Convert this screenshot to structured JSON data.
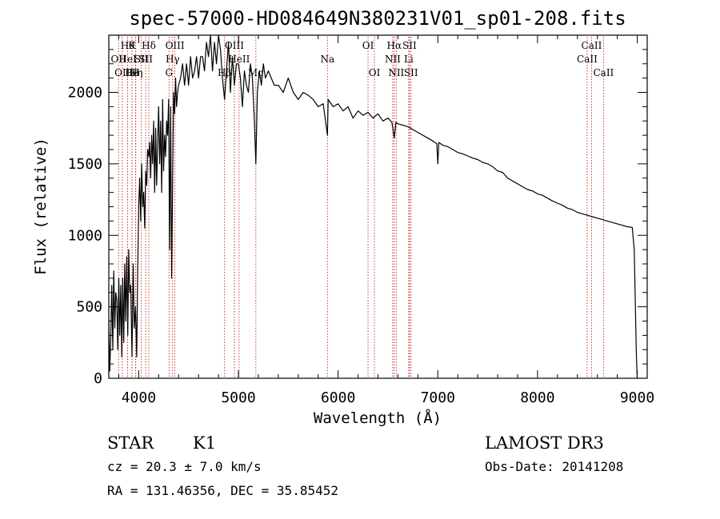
{
  "chart_data": {
    "type": "line",
    "title": "spec-57000-HD084649N380231V01_sp01-208.fits",
    "xlabel": "Wavelength (Å)",
    "ylabel": "Flux (relative)",
    "xlim": [
      3700,
      9100
    ],
    "ylim": [
      0,
      2400
    ],
    "xticks": [
      4000,
      5000,
      6000,
      7000,
      8000,
      9000
    ],
    "yticks": [
      0,
      500,
      1000,
      1500,
      2000
    ],
    "grid": false,
    "series": [
      {
        "name": "flux",
        "x": [
          3700,
          3710,
          3720,
          3730,
          3740,
          3750,
          3760,
          3770,
          3780,
          3790,
          3800,
          3810,
          3820,
          3830,
          3840,
          3850,
          3860,
          3870,
          3880,
          3890,
          3900,
          3910,
          3920,
          3933,
          3945,
          3955,
          3968,
          3980,
          3990,
          4000,
          4010,
          4020,
          4030,
          4040,
          4050,
          4060,
          4070,
          4080,
          4090,
          4101,
          4110,
          4120,
          4130,
          4140,
          4150,
          4160,
          4170,
          4180,
          4190,
          4200,
          4210,
          4220,
          4230,
          4240,
          4250,
          4260,
          4270,
          4280,
          4290,
          4300,
          4310,
          4320,
          4330,
          4340,
          4350,
          4360,
          4370,
          4380,
          4390,
          4400,
          4420,
          4440,
          4460,
          4480,
          4500,
          4520,
          4540,
          4560,
          4580,
          4600,
          4620,
          4640,
          4660,
          4680,
          4700,
          4720,
          4740,
          4760,
          4780,
          4800,
          4820,
          4840,
          4861,
          4880,
          4900,
          4920,
          4940,
          4960,
          4980,
          5000,
          5020,
          5040,
          5060,
          5080,
          5100,
          5120,
          5140,
          5160,
          5175,
          5190,
          5210,
          5230,
          5250,
          5270,
          5300,
          5330,
          5360,
          5400,
          5450,
          5500,
          5550,
          5600,
          5650,
          5700,
          5750,
          5800,
          5850,
          5893,
          5900,
          5950,
          6000,
          6050,
          6100,
          6150,
          6200,
          6250,
          6300,
          6350,
          6400,
          6450,
          6500,
          6540,
          6563,
          6580,
          6600,
          6650,
          6700,
          6750,
          6800,
          6850,
          6900,
          6950,
          6990,
          7000,
          7010,
          7050,
          7100,
          7150,
          7200,
          7250,
          7300,
          7350,
          7400,
          7450,
          7500,
          7550,
          7600,
          7650,
          7700,
          7750,
          7800,
          7850,
          7900,
          7950,
          8000,
          8050,
          8100,
          8150,
          8200,
          8250,
          8300,
          8350,
          8400,
          8450,
          8500,
          8550,
          8600,
          8650,
          8700,
          8750,
          8800,
          8850,
          8900,
          8950,
          8970,
          8990,
          9000
        ],
        "values": [
          400,
          50,
          300,
          650,
          200,
          750,
          350,
          600,
          550,
          200,
          700,
          300,
          650,
          150,
          700,
          250,
          800,
          400,
          850,
          300,
          900,
          600,
          650,
          150,
          800,
          350,
          500,
          150,
          750,
          1200,
          1400,
          1100,
          1500,
          1200,
          1300,
          1050,
          1450,
          1350,
          1600,
          1550,
          1650,
          1400,
          1700,
          1500,
          1800,
          1300,
          1750,
          1350,
          1650,
          1900,
          1500,
          1800,
          1300,
          1950,
          1450,
          1700,
          1550,
          1800,
          1700,
          1950,
          900,
          1900,
          700,
          1400,
          2000,
          1850,
          2100,
          1900,
          2000,
          2050,
          2100,
          2200,
          2050,
          2200,
          2050,
          2250,
          2100,
          2150,
          2250,
          2100,
          2250,
          2250,
          2150,
          2350,
          2250,
          2400,
          2150,
          2350,
          2200,
          2400,
          2300,
          2100,
          1950,
          2150,
          2350,
          2000,
          2250,
          2050,
          2200,
          2200,
          2100,
          1900,
          2150,
          2050,
          2000,
          2200,
          2100,
          1800,
          1500,
          2000,
          2150,
          2050,
          2200,
          2100,
          2150,
          2100,
          2050,
          2050,
          2000,
          2100,
          2000,
          1950,
          2000,
          1980,
          1950,
          1900,
          1920,
          1700,
          1950,
          1900,
          1920,
          1870,
          1900,
          1820,
          1870,
          1840,
          1860,
          1820,
          1850,
          1800,
          1820,
          1790,
          1680,
          1790,
          1780,
          1770,
          1760,
          1740,
          1720,
          1700,
          1680,
          1660,
          1640,
          1500,
          1650,
          1630,
          1620,
          1600,
          1580,
          1570,
          1555,
          1540,
          1530,
          1510,
          1500,
          1480,
          1450,
          1440,
          1400,
          1380,
          1360,
          1340,
          1320,
          1310,
          1290,
          1280,
          1260,
          1240,
          1225,
          1210,
          1190,
          1180,
          1160,
          1150,
          1140,
          1130,
          1120,
          1110,
          1100,
          1090,
          1080,
          1070,
          1060,
          1055,
          900,
          200,
          0
        ]
      }
    ],
    "line_markers": [
      {
        "wavelength": 3798,
        "label": "OII",
        "row": 2
      },
      {
        "wavelength": 3835,
        "label": "OII",
        "row": 3
      },
      {
        "wavelength": 3889,
        "label": "Hθ",
        "row": 1
      },
      {
        "wavelength": 3889,
        "label": "HeI",
        "row": 2
      },
      {
        "wavelength": 3933,
        "label": "K",
        "row": 1
      },
      {
        "wavelength": 3933,
        "label": "He",
        "row": 3
      },
      {
        "wavelength": 3970,
        "label": "Hη",
        "row": 3
      },
      {
        "wavelength": 4026,
        "label": "SII",
        "row": 2
      },
      {
        "wavelength": 3968,
        "label": "H",
        "row": 3
      },
      {
        "wavelength": 4101,
        "label": "Hδ",
        "row": 1
      },
      {
        "wavelength": 4070,
        "label": "SII",
        "row": 2
      },
      {
        "wavelength": 4304,
        "label": "G",
        "row": 3
      },
      {
        "wavelength": 4340,
        "label": "Hγ",
        "row": 2
      },
      {
        "wavelength": 4363,
        "label": "OIII",
        "row": 1
      },
      {
        "wavelength": 4861,
        "label": "Hβ",
        "row": 3
      },
      {
        "wavelength": 4959,
        "label": "OIII",
        "row": 1
      },
      {
        "wavelength": 5007,
        "label": "HeII",
        "row": 2
      },
      {
        "wavelength": 5175,
        "label": "Mg",
        "row": 3
      },
      {
        "wavelength": 5893,
        "label": "Na",
        "row": 2
      },
      {
        "wavelength": 6300,
        "label": "OI",
        "row": 1
      },
      {
        "wavelength": 6364,
        "label": "OI",
        "row": 3
      },
      {
        "wavelength": 6548,
        "label": "NII",
        "row": 2
      },
      {
        "wavelength": 6563,
        "label": "Hα",
        "row": 1
      },
      {
        "wavelength": 6583,
        "label": "NII",
        "row": 3
      },
      {
        "wavelength": 6708,
        "label": "Li",
        "row": 2
      },
      {
        "wavelength": 6716,
        "label": "SII",
        "row": 1
      },
      {
        "wavelength": 6731,
        "label": "SII",
        "row": 3
      },
      {
        "wavelength": 8498,
        "label": "CaII",
        "row": 2
      },
      {
        "wavelength": 8542,
        "label": "CaII",
        "row": 1
      },
      {
        "wavelength": 8662,
        "label": "CaII",
        "row": 3
      }
    ]
  },
  "info": {
    "object_class": "STAR",
    "subclass": "K1",
    "survey": "LAMOST DR3",
    "redshift": "cz = 20.3 ± 7.0 km/s",
    "obs_date": "Obs-Date: 20141208",
    "coords": "RA = 131.46356, DEC =  35.85452"
  },
  "colors": {
    "line_marker": "#cc2222",
    "spectrum": "#000000",
    "axis": "#000000"
  }
}
